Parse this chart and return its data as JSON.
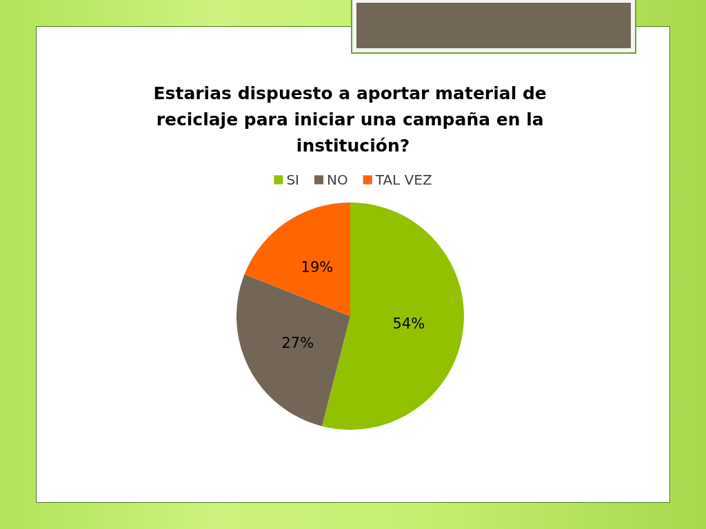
{
  "chart_data": {
    "type": "pie",
    "title": "Estarias dispuesto a aportar material de reciclaje para iniciar una campaña en la institución?",
    "categories": [
      "SI",
      "NO",
      "TAL VEZ"
    ],
    "values": [
      54,
      27,
      19
    ],
    "colors": [
      "#92c100",
      "#736657",
      "#ff6600"
    ],
    "value_labels": [
      "54%",
      "27%",
      "19%"
    ],
    "legend": "top"
  }
}
